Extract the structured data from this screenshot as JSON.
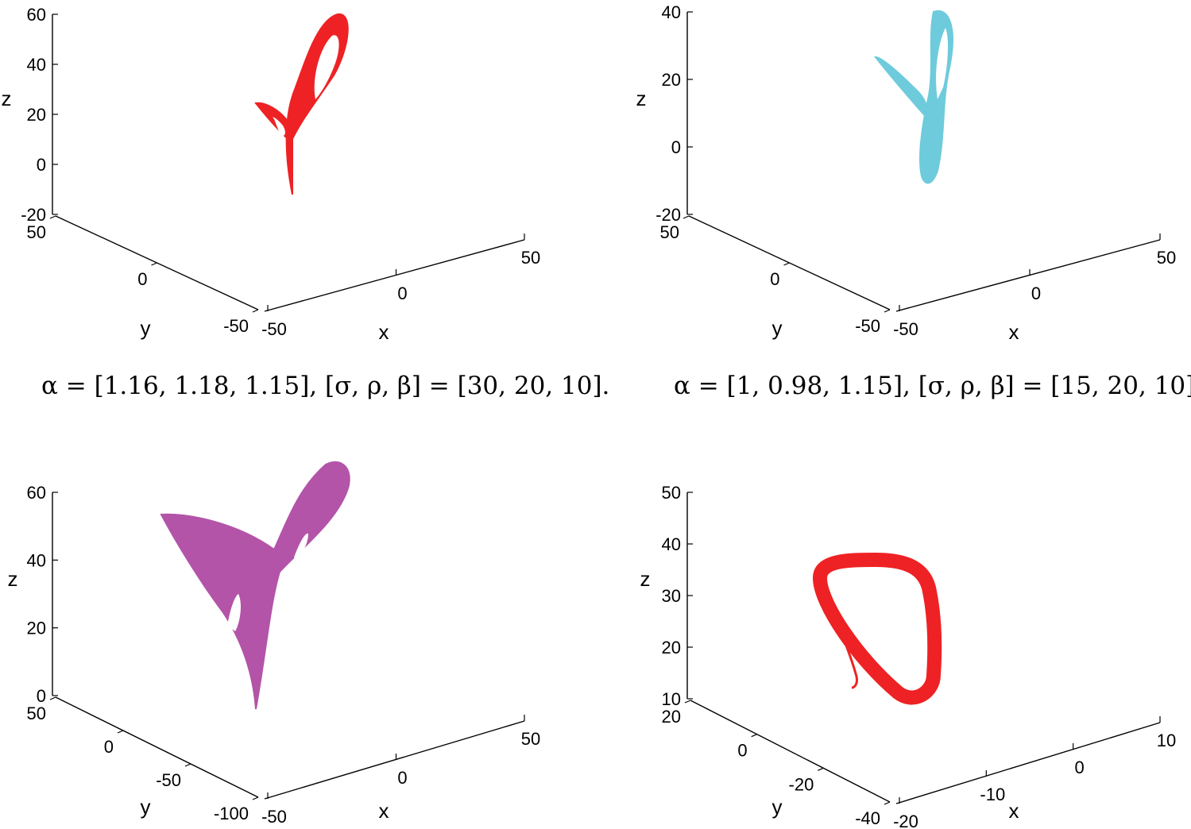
{
  "chart_data": [
    {
      "type": "line",
      "subtype": "3d-phase-portrait",
      "title": "",
      "xlabel": "x",
      "ylabel": "y",
      "zlabel": "z",
      "xlim": [
        -50,
        50
      ],
      "ylim": [
        -50,
        50
      ],
      "zlim": [
        -20,
        60
      ],
      "xticks": [
        "-50",
        "0",
        "50"
      ],
      "yticks": [
        "-50",
        "0",
        "50"
      ],
      "zticks": [
        "-20",
        "0",
        "20",
        "40",
        "60"
      ],
      "grid": false,
      "color": "#ee2224",
      "caption": "α = [1.16, 1.18, 1.15], [σ, ρ, β] = [30, 20, 10].",
      "series": [
        {
          "attractor": "two-lobe",
          "z_min": -12,
          "z_max": 60,
          "lobe_a_z_top": 60,
          "lobe_b_z_top": 24
        }
      ]
    },
    {
      "type": "line",
      "subtype": "3d-phase-portrait",
      "title": "",
      "xlabel": "x",
      "ylabel": "y",
      "zlabel": "z",
      "xlim": [
        -50,
        50
      ],
      "ylim": [
        -50,
        50
      ],
      "zlim": [
        -20,
        40
      ],
      "xticks": [
        "-50",
        "0",
        "50"
      ],
      "yticks": [
        "-50",
        "0",
        "50"
      ],
      "zticks": [
        "-20",
        "0",
        "20",
        "40"
      ],
      "grid": false,
      "color": "#6ecbdb",
      "caption": "α = [1, 0.98, 1.15], [σ, ρ, β] = [15, 20, 10]",
      "series": [
        {
          "attractor": "two-lobe",
          "z_min": -10,
          "z_max": 42,
          "lobe_a_z_top": 42,
          "lobe_b_z_top": 27
        }
      ]
    },
    {
      "type": "line",
      "subtype": "3d-phase-portrait",
      "title": "",
      "xlabel": "x",
      "ylabel": "y",
      "zlabel": "z",
      "xlim": [
        -50,
        50
      ],
      "ylim": [
        -100,
        50
      ],
      "zlim": [
        0,
        60
      ],
      "xticks": [
        "-50",
        "0",
        "50"
      ],
      "yticks": [
        "-100",
        "-50",
        "0",
        "50"
      ],
      "zticks": [
        "0",
        "20",
        "40",
        "60"
      ],
      "grid": false,
      "color": "#b354a8",
      "caption": "",
      "series": [
        {
          "attractor": "two-lobe",
          "z_min": 2,
          "z_max": 70,
          "lobe_a_z_top": 70,
          "lobe_b_z_top": 54
        }
      ]
    },
    {
      "type": "line",
      "subtype": "3d-phase-portrait",
      "title": "",
      "xlabel": "x",
      "ylabel": "y",
      "zlabel": "z",
      "xlim": [
        -20,
        10
      ],
      "ylim": [
        -40,
        20
      ],
      "zlim": [
        10,
        50
      ],
      "xticks": [
        "-20",
        "-10",
        "0",
        "10"
      ],
      "yticks": [
        "-40",
        "-20",
        "0",
        "20"
      ],
      "zticks": [
        "10",
        "20",
        "30",
        "40",
        "50"
      ],
      "grid": false,
      "color": "#ee2224",
      "caption": "",
      "series": [
        {
          "attractor": "limit-cycle",
          "z_min": 12,
          "z_max": 37
        }
      ]
    }
  ]
}
